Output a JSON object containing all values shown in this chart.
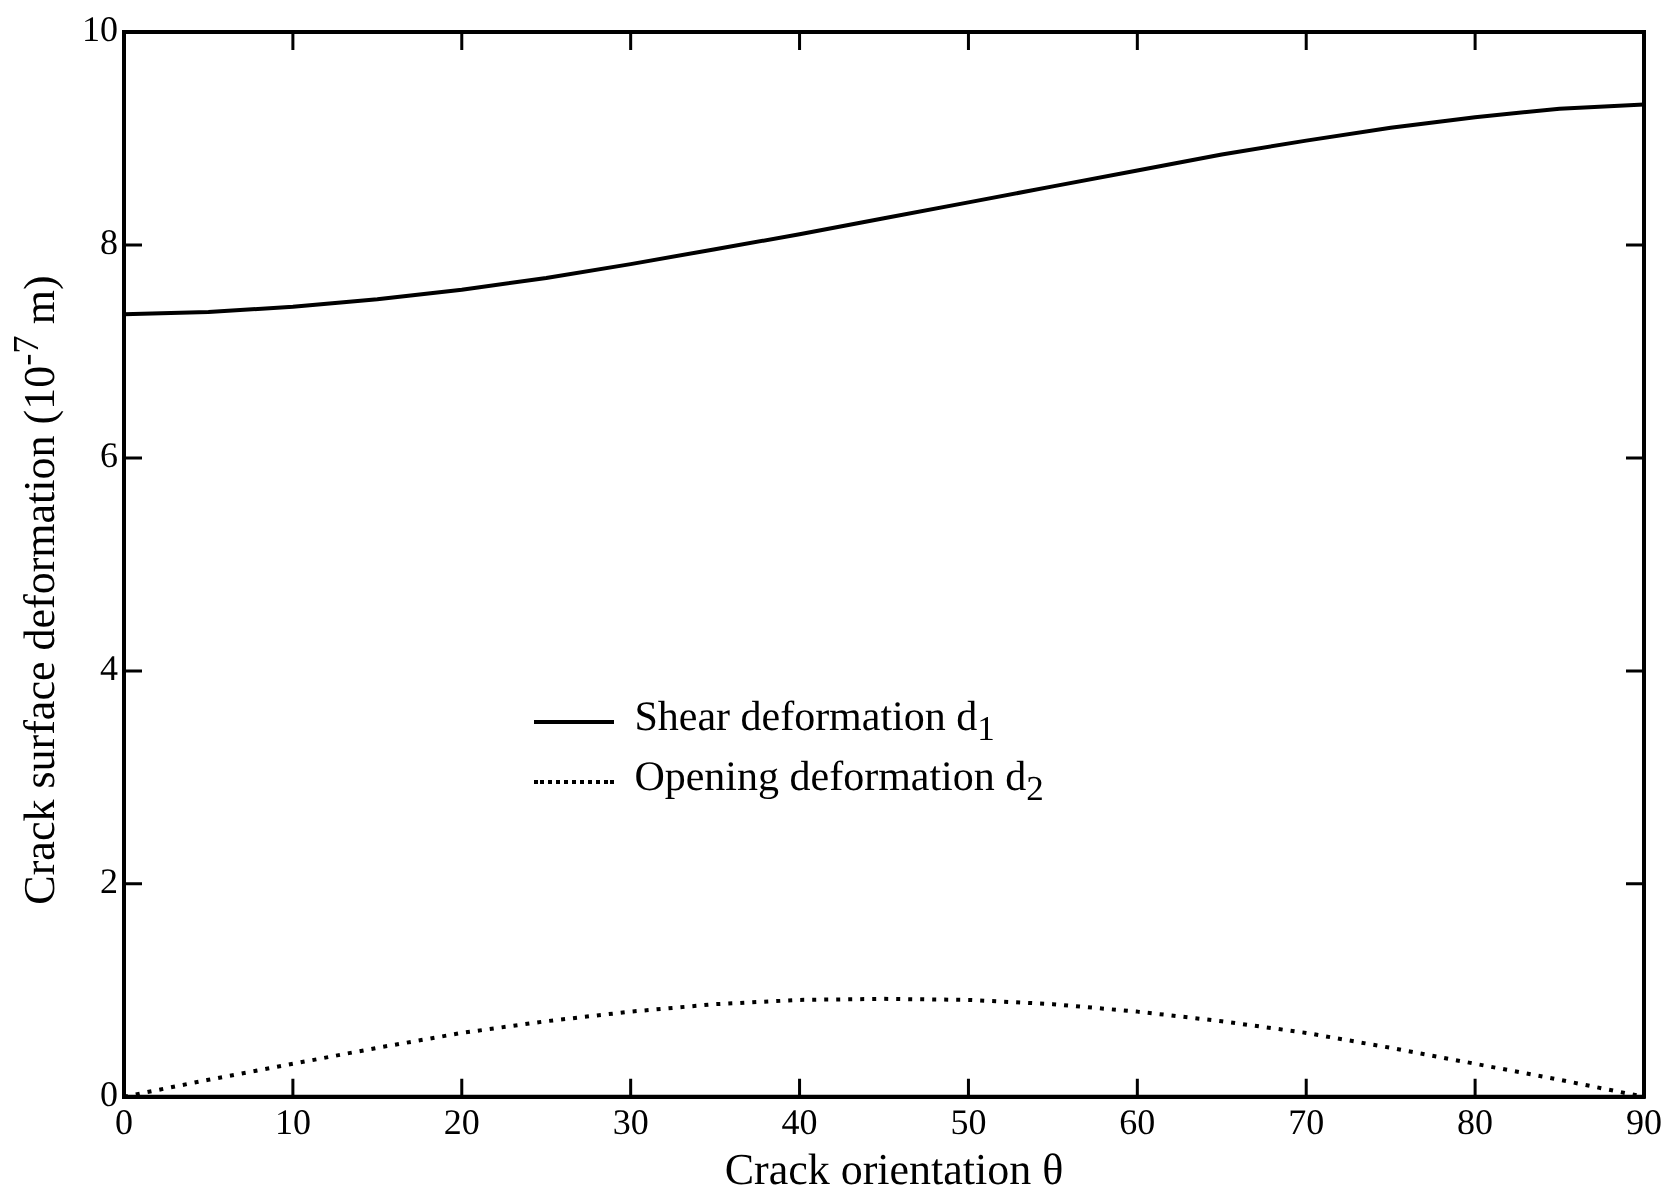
{
  "chart_data": {
    "type": "line",
    "xlabel": "Crack orientation θ",
    "ylabel": "Crack surface deformation (10$^{-7}$ m)",
    "x": [
      0,
      5,
      10,
      15,
      20,
      25,
      30,
      35,
      40,
      45,
      50,
      55,
      60,
      65,
      70,
      75,
      80,
      85,
      90
    ],
    "series": [
      {
        "name": "Shear deformation d$_{1}$",
        "color": "#000000",
        "line_style": "solid",
        "values": [
          7.35,
          7.37,
          7.42,
          7.49,
          7.58,
          7.69,
          7.82,
          7.96,
          8.1,
          8.25,
          8.4,
          8.55,
          8.7,
          8.85,
          8.98,
          9.1,
          9.2,
          9.28,
          9.32
        ]
      },
      {
        "name": "Opening deformation d$_{2}$",
        "color": "#000000",
        "line_style": "dotted",
        "values": [
          0,
          0.16,
          0.31,
          0.46,
          0.6,
          0.71,
          0.8,
          0.87,
          0.91,
          0.92,
          0.91,
          0.87,
          0.8,
          0.71,
          0.6,
          0.46,
          0.31,
          0.16,
          0
        ]
      }
    ],
    "xlim": [
      0,
      90
    ],
    "xticks": [
      0,
      10,
      20,
      30,
      40,
      50,
      60,
      70,
      80,
      90
    ],
    "ylim": [
      0,
      10
    ],
    "yticks": [
      0,
      2,
      4,
      6,
      8,
      10
    ],
    "grid": false,
    "legend": "bottom",
    "marker": "none"
  }
}
